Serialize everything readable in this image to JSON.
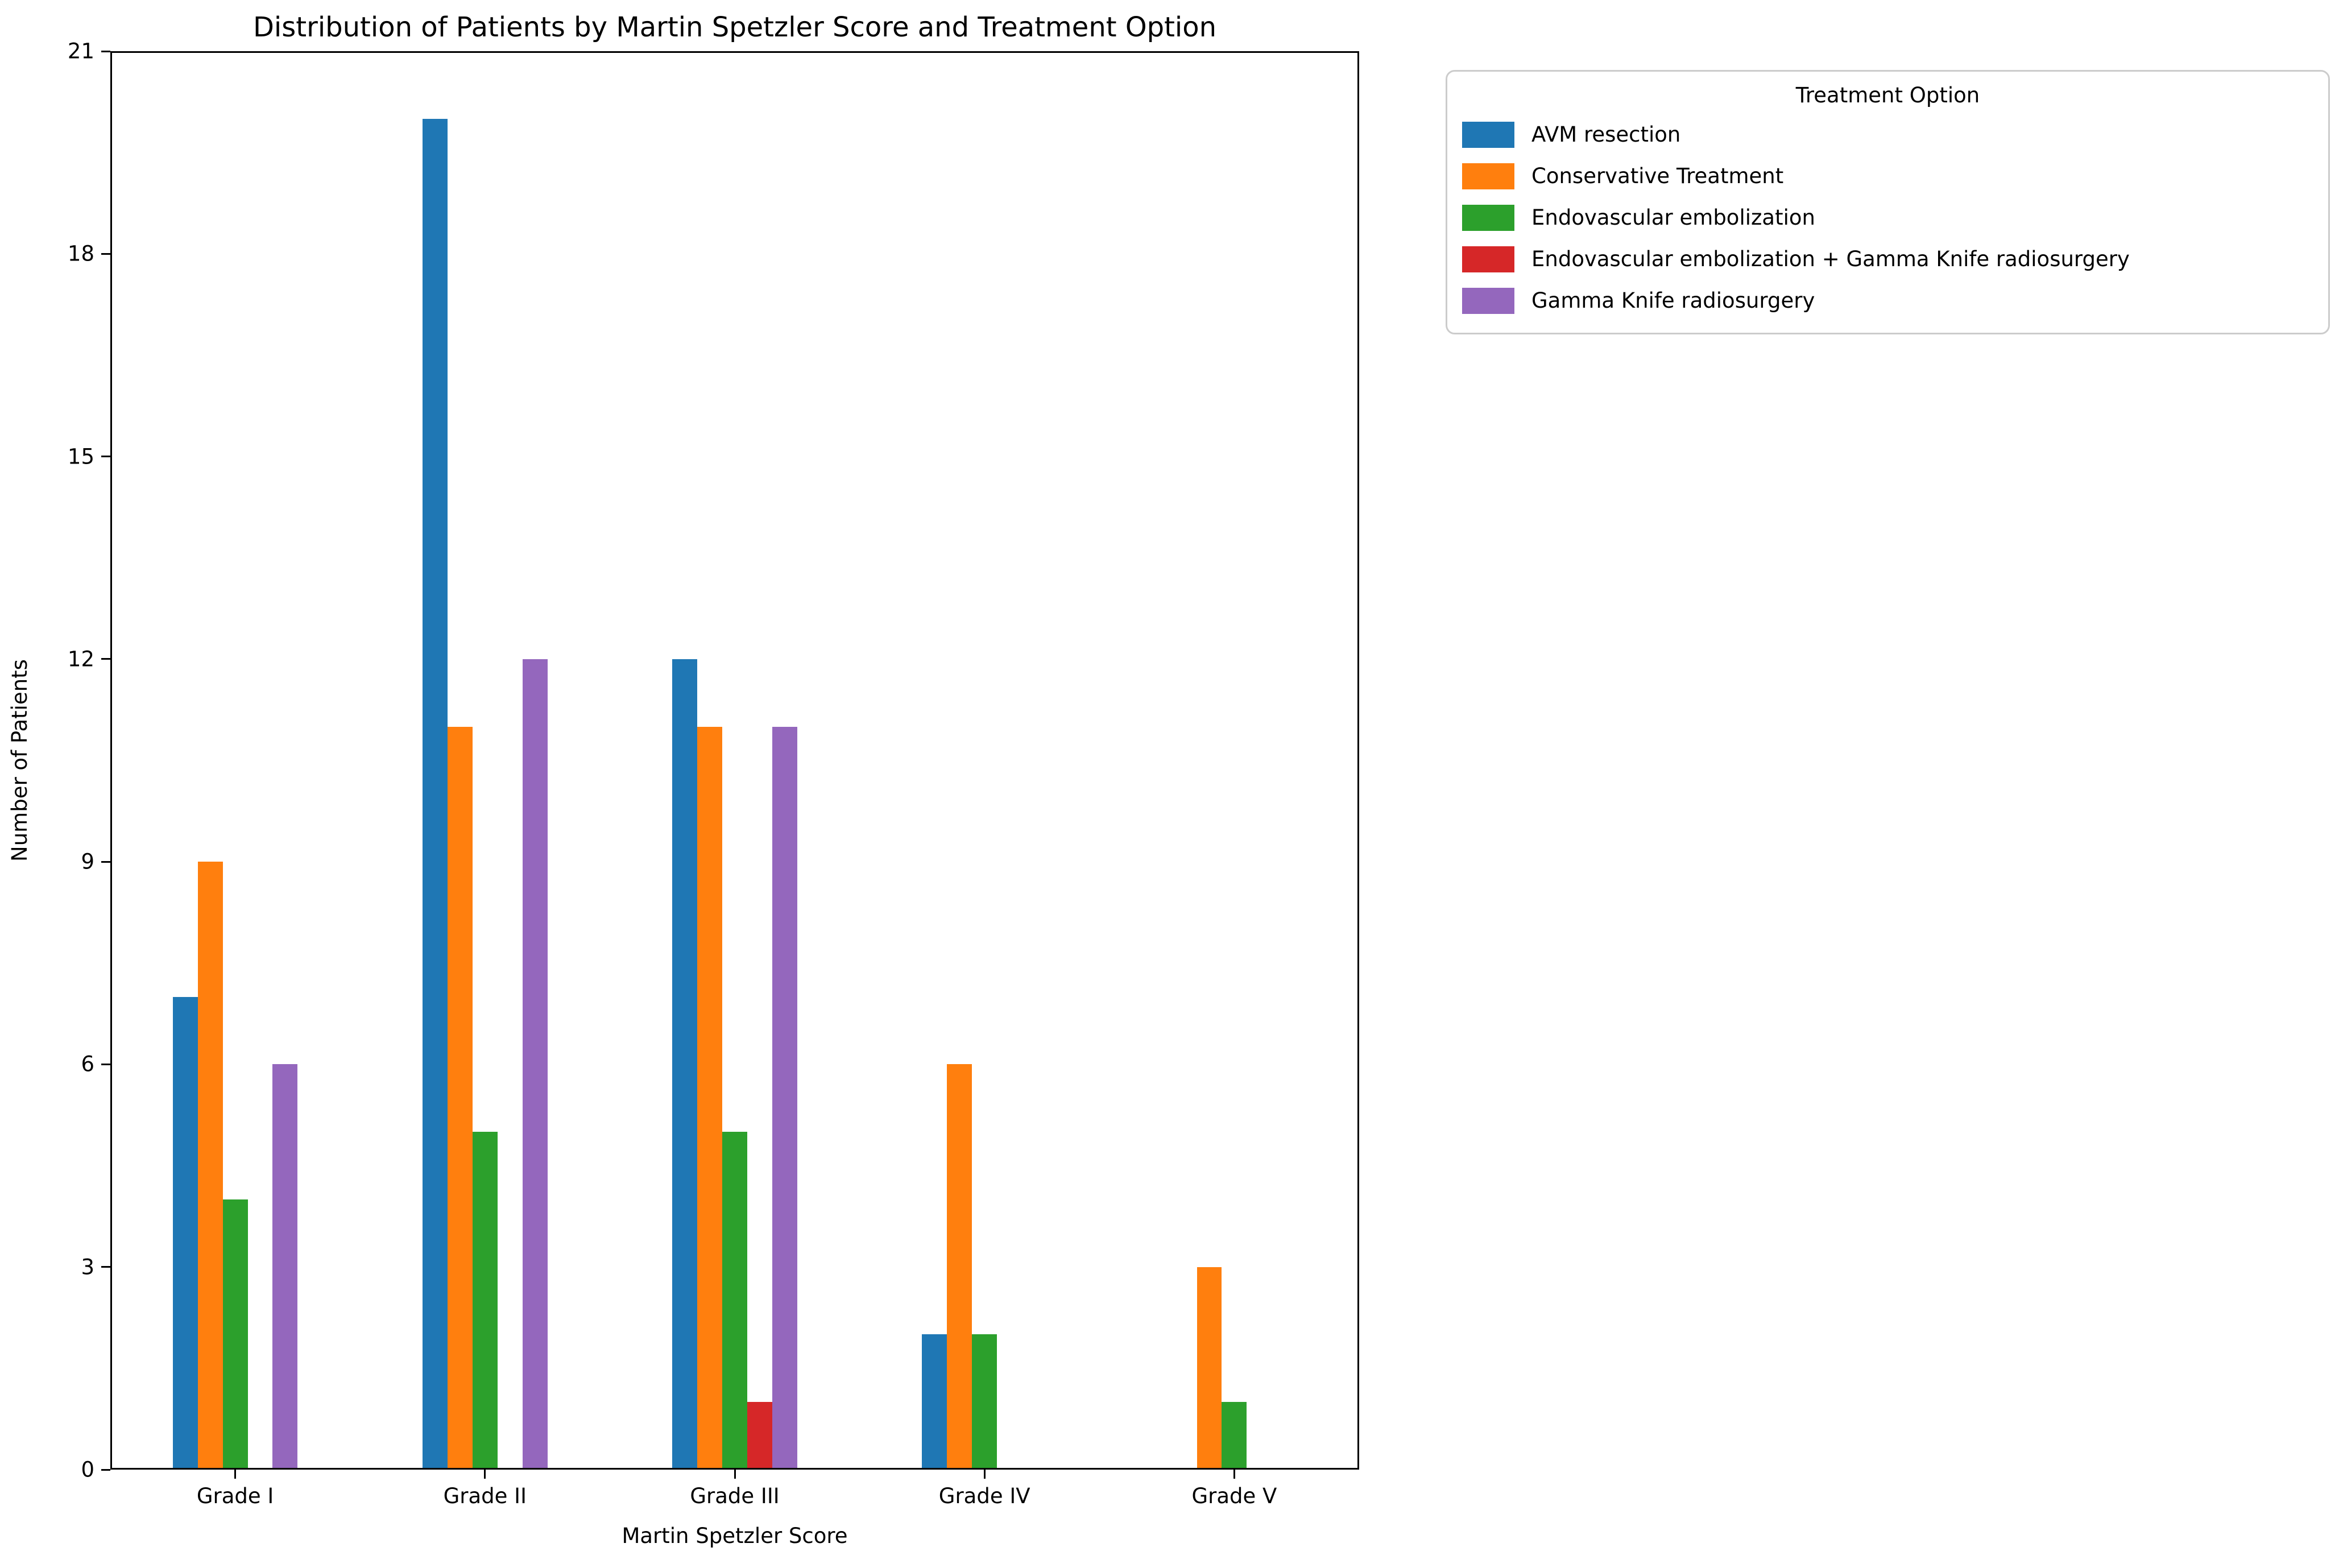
{
  "chart_data": {
    "type": "bar",
    "title": "Distribution of Patients by Martin Spetzler Score and Treatment Option",
    "xlabel": "Martin Spetzler Score",
    "ylabel": "Number of Patients",
    "legend_title": "Treatment Option",
    "legend_position": "upper right, outside axes",
    "grid": false,
    "background": "#ffffff",
    "categories": [
      "Grade I",
      "Grade II",
      "Grade III",
      "Grade IV",
      "Grade V"
    ],
    "series": [
      {
        "name": "AVM resection",
        "color": "#1f77b4",
        "values": [
          7,
          20,
          12,
          2,
          0
        ]
      },
      {
        "name": "Conservative Treatment",
        "color": "#ff7f0e",
        "values": [
          9,
          11,
          11,
          6,
          3
        ]
      },
      {
        "name": "Endovascular embolization",
        "color": "#2ca02c",
        "values": [
          4,
          5,
          5,
          2,
          1
        ]
      },
      {
        "name": "Endovascular embolization + Gamma Knife radiosurgery",
        "color": "#d62728",
        "values": [
          0,
          0,
          1,
          0,
          0
        ]
      },
      {
        "name": "Gamma Knife radiosurgery",
        "color": "#9467bd",
        "values": [
          6,
          12,
          11,
          0,
          0
        ]
      }
    ],
    "ylim": [
      0,
      21
    ],
    "yticks": [
      0,
      3,
      6,
      9,
      12,
      15,
      18,
      21
    ],
    "bar_group_width_fraction": 0.5
  }
}
